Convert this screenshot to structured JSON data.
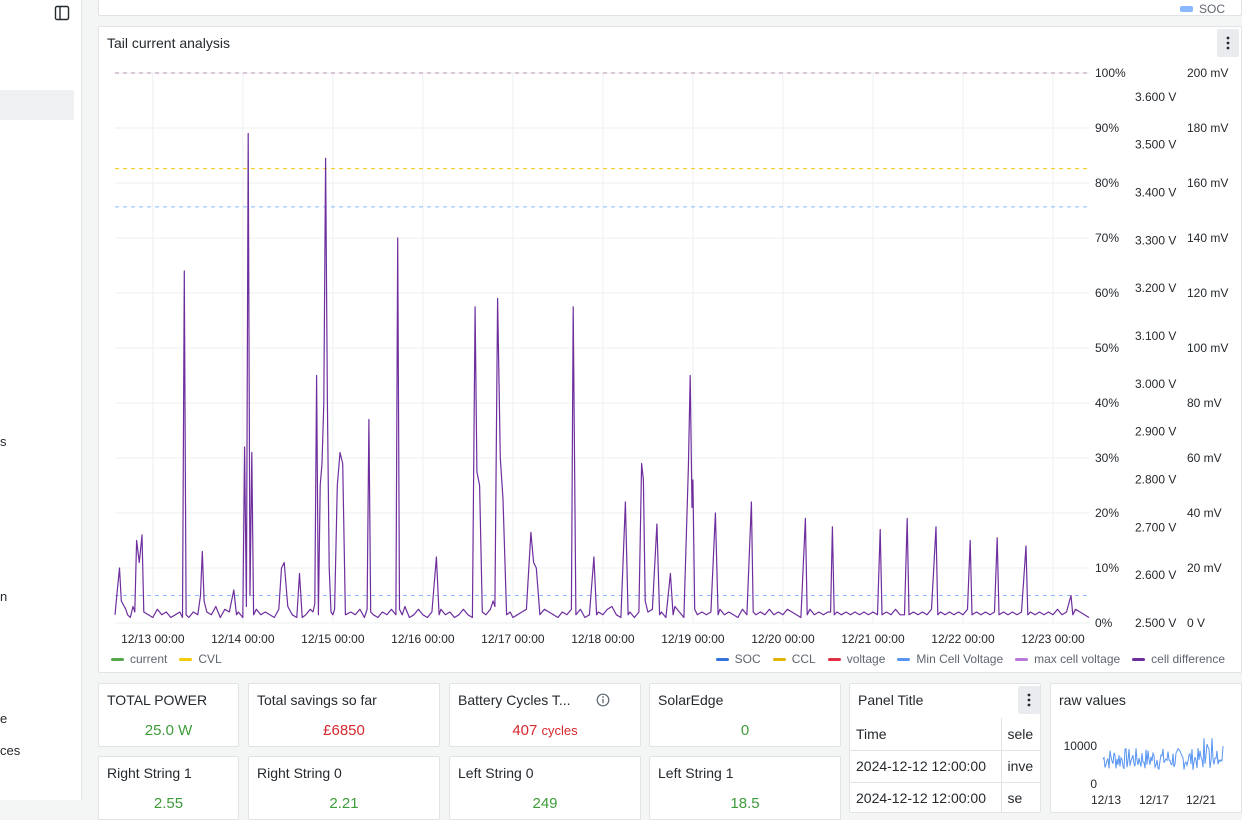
{
  "sidebar": {
    "fragments": [
      "s",
      "n",
      "e",
      "ces"
    ]
  },
  "top_panel": {
    "legend_label": "SOC",
    "legend_color": "#8ab8ff"
  },
  "chart_panel": {
    "title": "Tail current analysis",
    "legend_left": [
      {
        "label": "current",
        "color": "#56a64b"
      },
      {
        "label": "CVL",
        "color": "#f2cc0c"
      }
    ],
    "legend_right": [
      {
        "label": "SOC",
        "color": "#3274d9"
      },
      {
        "label": "CCL",
        "color": "#e0b400"
      },
      {
        "label": "voltage",
        "color": "#e02f44"
      },
      {
        "label": "Min Cell Voltage",
        "color": "#5794f2"
      },
      {
        "label": "max cell voltage",
        "color": "#b877d9"
      },
      {
        "label": "cell difference",
        "color": "#6e2e9e"
      }
    ]
  },
  "chart_data": {
    "type": "line",
    "title": "Tail current analysis",
    "x_ticks": [
      "12/13 00:00",
      "12/14 00:00",
      "12/15 00:00",
      "12/16 00:00",
      "12/17 00:00",
      "12/18 00:00",
      "12/19 00:00",
      "12/20 00:00",
      "12/21 00:00",
      "12/22 00:00",
      "12/23 00:00"
    ],
    "x_range_days": [
      12.58,
      23.4
    ],
    "percent_axis": [
      "100%",
      "90%",
      "80%",
      "70%",
      "60%",
      "50%",
      "40%",
      "30%",
      "20%",
      "10%",
      "0%"
    ],
    "voltage_axis": [
      "3.600 V",
      "3.500 V",
      "3.400 V",
      "3.300 V",
      "3.200 V",
      "3.100 V",
      "3.000 V",
      "2.900 V",
      "2.800 V",
      "2.700 V",
      "2.600 V",
      "2.500 V"
    ],
    "voltage_range": [
      2.5,
      3.65
    ],
    "mv_axis": [
      "200 mV",
      "180 mV",
      "160 mV",
      "140 mV",
      "120 mV",
      "100 mV",
      "80 mV",
      "60 mV",
      "40 mV",
      "20 mV",
      "0 V"
    ],
    "dashed_lines": [
      {
        "series": "SOC",
        "percent": 100,
        "color": "#b58fae"
      },
      {
        "series": "CVL",
        "voltage": 3.45,
        "color": "#f2cc0c"
      },
      {
        "series": "Min Cell Voltage",
        "voltage": 3.37,
        "color": "#8ab8ff"
      },
      {
        "series": "current",
        "percent": 5,
        "color": "#8ab8ff"
      }
    ],
    "series": [
      {
        "name": "cell difference",
        "unit": "mV",
        "color": "#6e2e9e",
        "points": [
          [
            12.58,
            3
          ],
          [
            12.6,
            10
          ],
          [
            12.63,
            20
          ],
          [
            12.65,
            8
          ],
          [
            12.7,
            5
          ],
          [
            12.72,
            3
          ],
          [
            12.75,
            2
          ],
          [
            12.78,
            6
          ],
          [
            12.8,
            4
          ],
          [
            12.82,
            30
          ],
          [
            12.85,
            22
          ],
          [
            12.88,
            32
          ],
          [
            12.9,
            4
          ],
          [
            12.95,
            3
          ],
          [
            13.0,
            2
          ],
          [
            13.05,
            5
          ],
          [
            13.1,
            3
          ],
          [
            13.15,
            4
          ],
          [
            13.2,
            2
          ],
          [
            13.25,
            3
          ],
          [
            13.3,
            4
          ],
          [
            13.33,
            2
          ],
          [
            13.35,
            128
          ],
          [
            13.37,
            3
          ],
          [
            13.4,
            2
          ],
          [
            13.45,
            4
          ],
          [
            13.5,
            3
          ],
          [
            13.53,
            10
          ],
          [
            13.55,
            26
          ],
          [
            13.57,
            8
          ],
          [
            13.6,
            4
          ],
          [
            13.65,
            3
          ],
          [
            13.7,
            6
          ],
          [
            13.75,
            2
          ],
          [
            13.8,
            5
          ],
          [
            13.85,
            4
          ],
          [
            13.9,
            12
          ],
          [
            13.93,
            3
          ],
          [
            13.95,
            4
          ],
          [
            14.0,
            2
          ],
          [
            14.02,
            64
          ],
          [
            14.04,
            6
          ],
          [
            14.06,
            178
          ],
          [
            14.08,
            10
          ],
          [
            14.1,
            62
          ],
          [
            14.12,
            3
          ],
          [
            14.15,
            5
          ],
          [
            14.2,
            3
          ],
          [
            14.25,
            4
          ],
          [
            14.3,
            3
          ],
          [
            14.35,
            2
          ],
          [
            14.4,
            5
          ],
          [
            14.43,
            20
          ],
          [
            14.46,
            22
          ],
          [
            14.5,
            6
          ],
          [
            14.55,
            3
          ],
          [
            14.6,
            2
          ],
          [
            14.63,
            18
          ],
          [
            14.66,
            2
          ],
          [
            14.7,
            3
          ],
          [
            14.75,
            5
          ],
          [
            14.78,
            4
          ],
          [
            14.8,
            7
          ],
          [
            14.82,
            90
          ],
          [
            14.84,
            3
          ],
          [
            14.86,
            50
          ],
          [
            14.88,
            58
          ],
          [
            14.9,
            80
          ],
          [
            14.92,
            169
          ],
          [
            14.94,
            80
          ],
          [
            14.96,
            20
          ],
          [
            14.98,
            4
          ],
          [
            15.0,
            3
          ],
          [
            15.02,
            5
          ],
          [
            15.05,
            50
          ],
          [
            15.08,
            62
          ],
          [
            15.11,
            58
          ],
          [
            15.14,
            3
          ],
          [
            15.2,
            4
          ],
          [
            15.25,
            3
          ],
          [
            15.3,
            5
          ],
          [
            15.35,
            2
          ],
          [
            15.38,
            5
          ],
          [
            15.4,
            74
          ],
          [
            15.42,
            4
          ],
          [
            15.45,
            3
          ],
          [
            15.5,
            2
          ],
          [
            15.55,
            4
          ],
          [
            15.6,
            3
          ],
          [
            15.65,
            5
          ],
          [
            15.7,
            3
          ],
          [
            15.72,
            140
          ],
          [
            15.74,
            5
          ],
          [
            15.77,
            3
          ],
          [
            15.8,
            6
          ],
          [
            15.85,
            2
          ],
          [
            15.9,
            3
          ],
          [
            15.95,
            5
          ],
          [
            16.0,
            3
          ],
          [
            16.05,
            2
          ],
          [
            16.1,
            4
          ],
          [
            16.15,
            24
          ],
          [
            16.18,
            3
          ],
          [
            16.2,
            5
          ],
          [
            16.25,
            3
          ],
          [
            16.3,
            4
          ],
          [
            16.35,
            2
          ],
          [
            16.4,
            3
          ],
          [
            16.45,
            5
          ],
          [
            16.5,
            3
          ],
          [
            16.55,
            2
          ],
          [
            16.58,
            115
          ],
          [
            16.6,
            55
          ],
          [
            16.63,
            50
          ],
          [
            16.66,
            4
          ],
          [
            16.7,
            3
          ],
          [
            16.75,
            5
          ],
          [
            16.78,
            8
          ],
          [
            16.8,
            6
          ],
          [
            16.83,
            118
          ],
          [
            16.86,
            60
          ],
          [
            16.89,
            45
          ],
          [
            16.93,
            3
          ],
          [
            16.97,
            4
          ],
          [
            17.0,
            2
          ],
          [
            17.05,
            3
          ],
          [
            17.1,
            4
          ],
          [
            17.15,
            5
          ],
          [
            17.2,
            33
          ],
          [
            17.23,
            22
          ],
          [
            17.26,
            20
          ],
          [
            17.3,
            3
          ],
          [
            17.35,
            5
          ],
          [
            17.4,
            4
          ],
          [
            17.45,
            3
          ],
          [
            17.5,
            2
          ],
          [
            17.55,
            4
          ],
          [
            17.6,
            3
          ],
          [
            17.65,
            5
          ],
          [
            17.67,
            115
          ],
          [
            17.7,
            3
          ],
          [
            17.75,
            5
          ],
          [
            17.8,
            2
          ],
          [
            17.85,
            3
          ],
          [
            17.9,
            24
          ],
          [
            17.93,
            3
          ],
          [
            17.95,
            4
          ],
          [
            18.0,
            3
          ],
          [
            18.05,
            5
          ],
          [
            18.1,
            6
          ],
          [
            18.15,
            3
          ],
          [
            18.2,
            2
          ],
          [
            18.25,
            44
          ],
          [
            18.28,
            3
          ],
          [
            18.3,
            4
          ],
          [
            18.35,
            2
          ],
          [
            18.4,
            4
          ],
          [
            18.43,
            58
          ],
          [
            18.45,
            52
          ],
          [
            18.47,
            8
          ],
          [
            18.5,
            4
          ],
          [
            18.55,
            5
          ],
          [
            18.6,
            36
          ],
          [
            18.63,
            3
          ],
          [
            18.65,
            4
          ],
          [
            18.7,
            2
          ],
          [
            18.75,
            18
          ],
          [
            18.78,
            3
          ],
          [
            18.8,
            6
          ],
          [
            18.85,
            4
          ],
          [
            18.9,
            2
          ],
          [
            18.95,
            57
          ],
          [
            18.97,
            90
          ],
          [
            18.99,
            42
          ],
          [
            19.0,
            52
          ],
          [
            19.02,
            5
          ],
          [
            19.05,
            3
          ],
          [
            19.1,
            4
          ],
          [
            19.15,
            3
          ],
          [
            19.2,
            4
          ],
          [
            19.25,
            40
          ],
          [
            19.28,
            3
          ],
          [
            19.3,
            5
          ],
          [
            19.35,
            3
          ],
          [
            19.4,
            4
          ],
          [
            19.5,
            2
          ],
          [
            19.55,
            5
          ],
          [
            19.6,
            3
          ],
          [
            19.65,
            44
          ],
          [
            19.67,
            4
          ],
          [
            19.7,
            3
          ],
          [
            19.75,
            4
          ],
          [
            19.8,
            3
          ],
          [
            19.85,
            5
          ],
          [
            19.9,
            3
          ],
          [
            19.95,
            4
          ],
          [
            20.0,
            3
          ],
          [
            20.05,
            5
          ],
          [
            20.1,
            4
          ],
          [
            20.15,
            3
          ],
          [
            20.2,
            2
          ],
          [
            20.25,
            38
          ],
          [
            20.27,
            3
          ],
          [
            20.3,
            5
          ],
          [
            20.35,
            3
          ],
          [
            20.4,
            4
          ],
          [
            20.45,
            3
          ],
          [
            20.5,
            4
          ],
          [
            20.53,
            4
          ],
          [
            20.55,
            35
          ],
          [
            20.57,
            3
          ],
          [
            20.6,
            4
          ],
          [
            20.65,
            3
          ],
          [
            20.7,
            4
          ],
          [
            20.75,
            3
          ],
          [
            20.8,
            4
          ],
          [
            20.85,
            3
          ],
          [
            20.9,
            4
          ],
          [
            20.95,
            3
          ],
          [
            21.0,
            4
          ],
          [
            21.05,
            3
          ],
          [
            21.08,
            34
          ],
          [
            21.1,
            3
          ],
          [
            21.15,
            4
          ],
          [
            21.2,
            3
          ],
          [
            21.25,
            5
          ],
          [
            21.3,
            3
          ],
          [
            21.35,
            3
          ],
          [
            21.38,
            38
          ],
          [
            21.4,
            3
          ],
          [
            21.45,
            4
          ],
          [
            21.5,
            3
          ],
          [
            21.55,
            4
          ],
          [
            21.6,
            3
          ],
          [
            21.65,
            5
          ],
          [
            21.7,
            35
          ],
          [
            21.72,
            3
          ],
          [
            21.75,
            4
          ],
          [
            21.8,
            3
          ],
          [
            21.85,
            4
          ],
          [
            21.9,
            3
          ],
          [
            21.95,
            4
          ],
          [
            22.0,
            3
          ],
          [
            22.05,
            5
          ],
          [
            22.08,
            30
          ],
          [
            22.1,
            3
          ],
          [
            22.15,
            4
          ],
          [
            22.2,
            3
          ],
          [
            22.25,
            4
          ],
          [
            22.3,
            3
          ],
          [
            22.35,
            4
          ],
          [
            22.38,
            31
          ],
          [
            22.4,
            3
          ],
          [
            22.45,
            4
          ],
          [
            22.5,
            3
          ],
          [
            22.55,
            4
          ],
          [
            22.6,
            3
          ],
          [
            22.65,
            4
          ],
          [
            22.7,
            28
          ],
          [
            22.72,
            3
          ],
          [
            22.75,
            4
          ],
          [
            22.8,
            3
          ],
          [
            22.85,
            4
          ],
          [
            22.9,
            3
          ],
          [
            22.95,
            4
          ],
          [
            23.0,
            3
          ],
          [
            23.05,
            5
          ],
          [
            23.1,
            3
          ],
          [
            23.15,
            4
          ],
          [
            23.2,
            10
          ],
          [
            23.22,
            3
          ],
          [
            23.25,
            5
          ],
          [
            23.3,
            4
          ],
          [
            23.35,
            3
          ],
          [
            23.4,
            2
          ]
        ]
      }
    ]
  },
  "stats": [
    {
      "title": "TOTAL POWER",
      "value": "25.0 W",
      "tone": "green"
    },
    {
      "title": "Total savings so far",
      "value": "£6850",
      "tone": "red"
    },
    {
      "title": "Battery Cycles T...",
      "value": "407",
      "unit": "cycles",
      "tone": "red"
    },
    {
      "title": "SolarEdge",
      "value": "0",
      "tone": "green"
    }
  ],
  "stats_row2": [
    {
      "title": "Right String 1",
      "value": "2.55"
    },
    {
      "title": "Right String 0",
      "value": "2.21"
    },
    {
      "title": "Left String 0",
      "value": "249"
    },
    {
      "title": "Left String 1",
      "value": "18.5"
    }
  ],
  "table_panel": {
    "title": "Panel Title",
    "columns": [
      "Time",
      "sele"
    ],
    "rows": [
      [
        "2024-12-12 12:00:00",
        "inve"
      ],
      [
        "2024-12-12 12:00:00",
        "se"
      ]
    ]
  },
  "raw_panel": {
    "title": "raw values",
    "y_ticks": [
      "10000",
      "0"
    ],
    "x_ticks": [
      "12/13",
      "12/17",
      "12/21"
    ],
    "color": "#5794f2"
  }
}
